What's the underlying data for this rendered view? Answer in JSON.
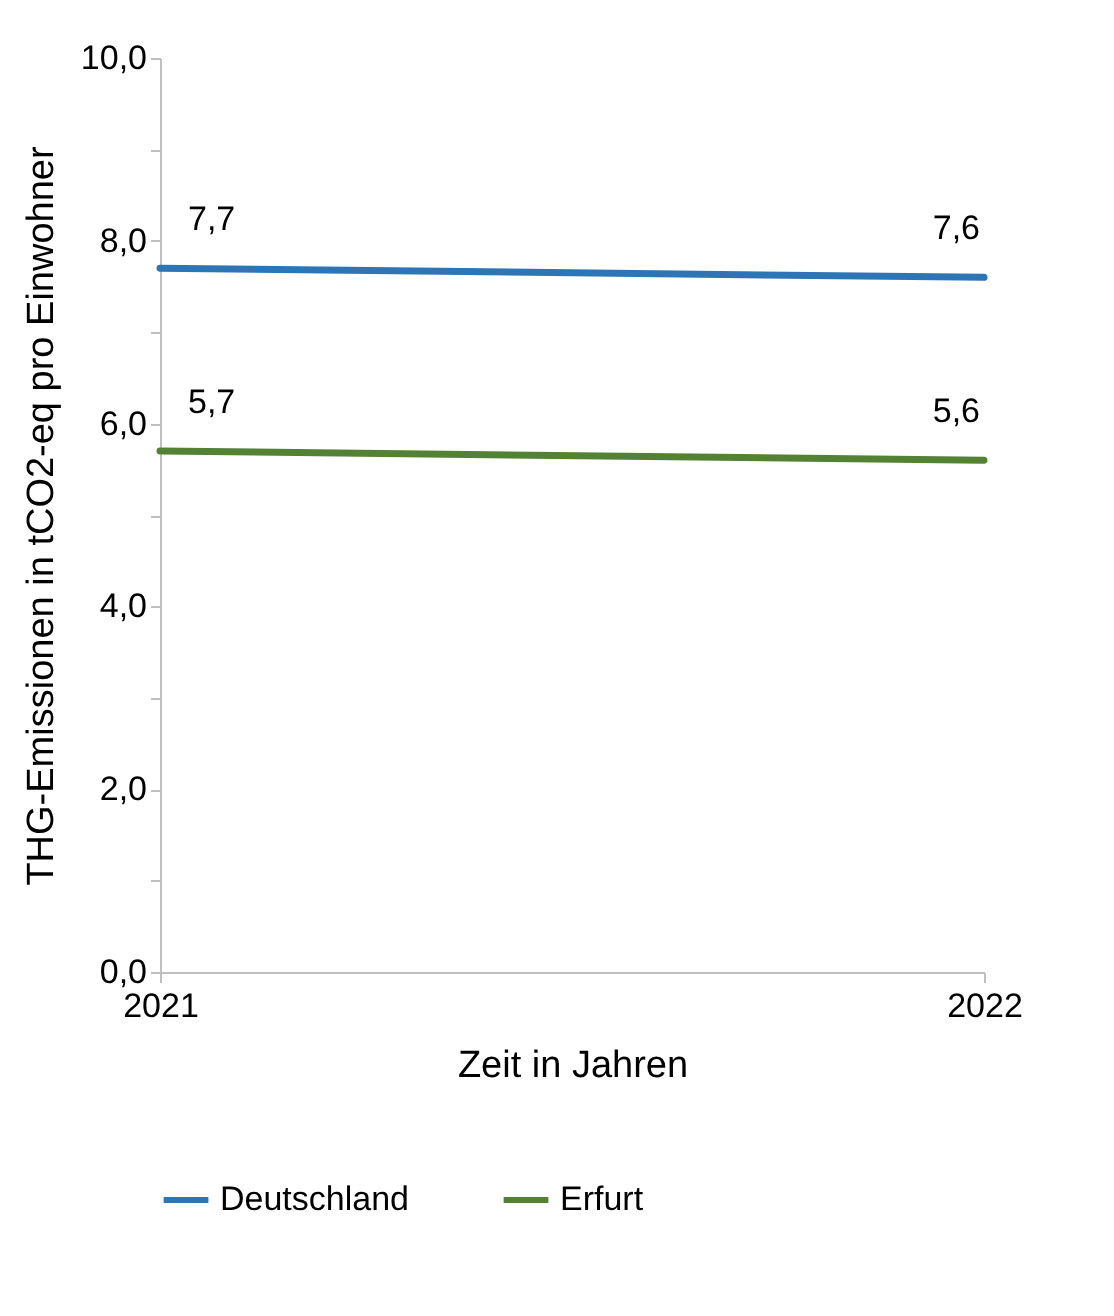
{
  "chart_data": {
    "type": "line",
    "xlabel": "Zeit in Jahren",
    "ylabel": "THG-Emissionen in tCO2-eq pro Einwohner",
    "x": [
      2021,
      2022
    ],
    "xlim": [
      2021,
      2022
    ],
    "xticks": [
      2021,
      2022
    ],
    "ylim": [
      0,
      10
    ],
    "yticks": [
      {
        "value": 0,
        "label": "0,0"
      },
      {
        "value": 1,
        "label": null
      },
      {
        "value": 2,
        "label": "2,0"
      },
      {
        "value": 3,
        "label": null
      },
      {
        "value": 4,
        "label": "4,0"
      },
      {
        "value": 5,
        "label": null
      },
      {
        "value": 6,
        "label": "6,0"
      },
      {
        "value": 7,
        "label": null
      },
      {
        "value": 8,
        "label": "8,0"
      },
      {
        "value": 9,
        "label": null
      },
      {
        "value": 10,
        "label": "10,0"
      }
    ],
    "series": [
      {
        "name": "Deutschland",
        "color": "#2e75b6",
        "values": [
          7.7,
          7.6
        ],
        "value_labels": [
          "7,7",
          "7,6"
        ]
      },
      {
        "name": "Erfurt",
        "color": "#548235",
        "values": [
          5.7,
          5.6
        ],
        "value_labels": [
          "5,7",
          "5,6"
        ]
      }
    ],
    "grid": false,
    "legend": "bottom",
    "marker": "none",
    "line_style": "solid"
  }
}
